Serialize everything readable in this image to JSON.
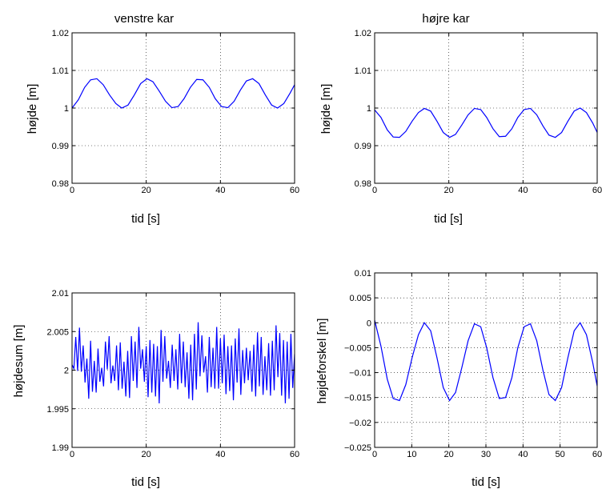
{
  "chart_data": [
    {
      "type": "line",
      "title": "venstre kar",
      "xlabel": "tid  [s]",
      "ylabel": "højde  [m]",
      "xlim": [
        0,
        60
      ],
      "ylim": [
        0.98,
        1.02
      ],
      "xticks": [
        0,
        20,
        40,
        60
      ],
      "yticks": [
        0.98,
        0.99,
        1,
        1.01,
        1.02
      ],
      "xtick_labels": [
        "0",
        "20",
        "40",
        "60"
      ],
      "ytick_labels": [
        "0.98",
        "0.99",
        "1",
        "1.01",
        "1.02"
      ],
      "grid": true,
      "color": "#0000ff",
      "series": [
        {
          "x": [
            0,
            1.7,
            3.4,
            5,
            6.7,
            8.4,
            10.1,
            11.8,
            13.4,
            15.1,
            16.8,
            18.5,
            20.2,
            21.8,
            23.5,
            25.2,
            26.9,
            28.6,
            30.2,
            31.9,
            33.6,
            35.3,
            37,
            38.6,
            40.3,
            42,
            43.7,
            45.4,
            47,
            48.7,
            50.4,
            52.1,
            53.8,
            55.4,
            57.1,
            58.8,
            60
          ],
          "y": [
            1.0,
            1.0022,
            1.0055,
            1.0075,
            1.0078,
            1.0062,
            1.0035,
            1.0012,
            1.0,
            1.0008,
            1.0035,
            1.0065,
            1.0078,
            1.007,
            1.0045,
            1.0018,
            1.0001,
            1.0004,
            1.0025,
            1.0055,
            1.0076,
            1.0075,
            1.0055,
            1.0025,
            1.0004,
            1.0001,
            1.0018,
            1.0048,
            1.0072,
            1.0078,
            1.0065,
            1.0035,
            1.0008,
            1.0,
            1.0012,
            1.004,
            1.0062
          ]
        }
      ]
    },
    {
      "type": "line",
      "title": "højre kar",
      "xlabel": "tid  [s]",
      "ylabel": "højde  [m]",
      "xlim": [
        0,
        60
      ],
      "ylim": [
        0.98,
        1.02
      ],
      "xticks": [
        0,
        20,
        40,
        60
      ],
      "yticks": [
        0.98,
        0.99,
        1,
        1.01,
        1.02
      ],
      "xtick_labels": [
        "0",
        "20",
        "40",
        "60"
      ],
      "ytick_labels": [
        "0.98",
        "0.99",
        "1",
        "1.01",
        "1.02"
      ],
      "grid": true,
      "color": "#0000ff",
      "series": [
        {
          "x": [
            0,
            1.7,
            3.4,
            5,
            6.7,
            8.4,
            10.1,
            11.8,
            13.4,
            15.1,
            16.8,
            18.5,
            20.2,
            21.8,
            23.5,
            25.2,
            26.9,
            28.6,
            30.2,
            31.9,
            33.6,
            35.3,
            37,
            38.6,
            40.3,
            42,
            43.7,
            45.4,
            47,
            48.7,
            50.4,
            52.1,
            53.8,
            55.4,
            57.1,
            58.8,
            60
          ],
          "y": [
            0.9995,
            0.9975,
            0.9942,
            0.9923,
            0.9922,
            0.9938,
            0.9965,
            0.9988,
            0.9999,
            0.9992,
            0.9965,
            0.9935,
            0.9922,
            0.993,
            0.9955,
            0.9982,
            0.9999,
            0.9996,
            0.9975,
            0.9945,
            0.9924,
            0.9925,
            0.9945,
            0.9975,
            0.9996,
            0.9999,
            0.9982,
            0.9952,
            0.9928,
            0.9922,
            0.9935,
            0.9965,
            0.9992,
            1.0,
            0.9988,
            0.996,
            0.9935
          ]
        }
      ]
    },
    {
      "type": "line",
      "title": "",
      "xlabel": "tid  [s]",
      "ylabel": "højdesum  [m]",
      "xlim": [
        0,
        60
      ],
      "ylim": [
        1.99,
        2.01
      ],
      "xticks": [
        0,
        20,
        40,
        60
      ],
      "yticks": [
        1.99,
        1.995,
        2,
        2.005,
        2.01
      ],
      "xtick_labels": [
        "0",
        "20",
        "40",
        "60"
      ],
      "ytick_labels": [
        "1.99",
        "1.995",
        "2",
        "2.005",
        "2.01"
      ],
      "grid": true,
      "color": "#0000ff",
      "series": [
        {
          "x": [
            0,
            0.5,
            1,
            1.5,
            2,
            2.5,
            3,
            3.5,
            4,
            4.5,
            5,
            5.5,
            6,
            6.5,
            7,
            7.5,
            8,
            8.5,
            9,
            9.5,
            10,
            10.5,
            11,
            11.5,
            12,
            12.5,
            13,
            13.5,
            14,
            14.5,
            15,
            15.5,
            16,
            16.5,
            17,
            17.5,
            18,
            18.5,
            19,
            19.5,
            20,
            20.5,
            21,
            21.5,
            22,
            22.5,
            23,
            23.5,
            24,
            24.5,
            25,
            25.5,
            26,
            26.5,
            27,
            27.5,
            28,
            28.5,
            29,
            29.5,
            30,
            30.5,
            31,
            31.5,
            32,
            32.5,
            33,
            33.5,
            34,
            34.5,
            35,
            35.5,
            36,
            36.5,
            37,
            37.5,
            38,
            38.5,
            39,
            39.5,
            40,
            40.5,
            41,
            41.5,
            42,
            42.5,
            43,
            43.5,
            44,
            44.5,
            45,
            45.5,
            46,
            46.5,
            47,
            47.5,
            48,
            48.5,
            49,
            49.5,
            50,
            50.5,
            51,
            51.5,
            52,
            52.5,
            53,
            53.5,
            54,
            54.5,
            55,
            55.5,
            56,
            56.5,
            57,
            57.5,
            58,
            58.5,
            59,
            59.5,
            60
          ],
          "y": [
            2.0007,
            2.0002,
            2.0043,
            1.9999,
            2.0055,
            1.9998,
            2.0032,
            1.9984,
            2.0015,
            1.9963,
            2.0038,
            1.9972,
            2.0012,
            1.9971,
            2.0028,
            1.9985,
            2.0003,
            1.9979,
            2.0037,
            2.0001,
            2.0044,
            1.9983,
            2.0006,
            1.9986,
            2.0032,
            1.9974,
            2.0036,
            1.9976,
            2.0011,
            1.9966,
            2.0025,
            1.9964,
            2.0044,
            1.9986,
            2.0037,
            1.9977,
            2.0056,
            2.0002,
            2.0027,
            1.9985,
            2.0031,
            1.9965,
            2.0039,
            1.9971,
            2.0034,
            1.9966,
            2.0031,
            1.9957,
            2.0052,
            1.9985,
            2.0044,
            1.9989,
            2.0012,
            1.9977,
            2.0033,
            1.9986,
            2.0027,
            1.9975,
            2.0047,
            1.9983,
            2.0037,
            1.9978,
            2.0023,
            1.9963,
            2.0033,
            1.9961,
            2.0047,
            1.9975,
            2.0062,
            1.9992,
            2.0045,
            1.9997,
            2.0018,
            1.9971,
            2.0043,
            1.9978,
            2.0029,
            1.9976,
            2.0056,
            1.9976,
            2.0041,
            1.9983,
            2.0046,
            1.9969,
            2.0031,
            1.9973,
            2.0032,
            1.9961,
            2.0041,
            1.9984,
            2.0054,
            1.9968,
            2.0026,
            1.9983,
            2.0029,
            1.9987,
            2.0025,
            1.9972,
            2.0033,
            1.9966,
            2.0049,
            1.9979,
            2.0043,
            1.9968,
            2.0018,
            1.9974,
            2.0035,
            1.9967,
            2.0038,
            1.9974,
            2.0058,
            1.9991,
            2.0048,
            1.9967,
            2.0039,
            1.9957,
            2.0037,
            1.9963,
            2.0047,
            1.9977,
            2.0021
          ]
        }
      ]
    },
    {
      "type": "line",
      "title": "",
      "xlabel": "tid  [s]",
      "ylabel": "højdeforskel [m]",
      "xlim": [
        0,
        60
      ],
      "ylim": [
        -0.025,
        0.01
      ],
      "xticks": [
        0,
        10,
        20,
        30,
        40,
        50,
        60
      ],
      "yticks": [
        -0.025,
        -0.02,
        -0.015,
        -0.01,
        -0.005,
        0,
        0.005,
        0.01
      ],
      "xtick_labels": [
        "0",
        "10",
        "20",
        "30",
        "40",
        "50",
        "60"
      ],
      "ytick_labels": [
        "−0.025",
        "−0.02",
        "−0.015",
        "−0.01",
        "−0.005",
        "0",
        "0.005",
        "0.01"
      ],
      "grid": true,
      "color": "#0000ff",
      "series": [
        {
          "x": [
            0,
            1.7,
            3.4,
            5,
            6.7,
            8.4,
            10.1,
            11.8,
            13.4,
            15.1,
            16.8,
            18.5,
            20.2,
            21.8,
            23.5,
            25.2,
            26.9,
            28.6,
            30.2,
            31.9,
            33.6,
            35.3,
            37,
            38.6,
            40.3,
            42,
            43.7,
            45.4,
            47,
            48.7,
            50.4,
            52.1,
            53.8,
            55.4,
            57.1,
            58.8,
            60
          ],
          "y": [
            0.0005,
            -0.0047,
            -0.0113,
            -0.0152,
            -0.0156,
            -0.0124,
            -0.007,
            -0.0024,
            0.0,
            -0.0016,
            -0.007,
            -0.013,
            -0.0156,
            -0.014,
            -0.009,
            -0.0036,
            -0.0002,
            -0.0008,
            -0.005,
            -0.011,
            -0.0152,
            -0.015,
            -0.011,
            -0.005,
            -0.0008,
            -0.0002,
            -0.0036,
            -0.0096,
            -0.0144,
            -0.0156,
            -0.013,
            -0.007,
            -0.0016,
            0.0,
            -0.0024,
            -0.008,
            -0.0127
          ]
        }
      ]
    }
  ]
}
